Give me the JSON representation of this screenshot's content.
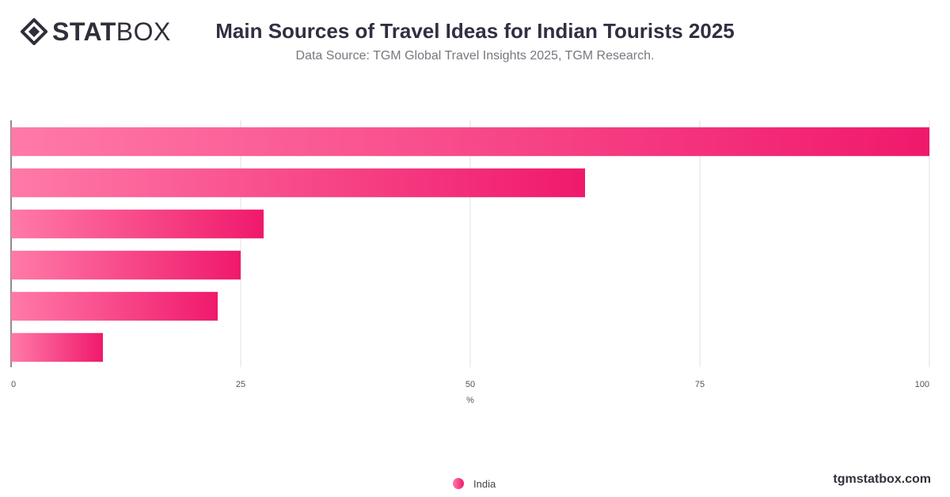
{
  "brand": {
    "logo_bold": "STAT",
    "logo_light": "BOX",
    "footer": "tgmstatbox.com"
  },
  "header": {
    "title": "Main Sources of Travel Ideas for Indian Tourists 2025",
    "subtitle": "Data Source: TGM Global Travel Insights 2025, TGM Research."
  },
  "legend": {
    "items": [
      {
        "label": "India",
        "color": "#f0196c"
      }
    ]
  },
  "chart_data": {
    "type": "bar",
    "orientation": "horizontal",
    "categories": [
      "",
      "",
      "",
      "",
      "",
      ""
    ],
    "series": [
      {
        "name": "India",
        "values": [
          100,
          62.5,
          27.5,
          25,
          22.5,
          10
        ]
      }
    ],
    "xlabel": "%",
    "xlim": [
      0,
      100
    ],
    "xticks": [
      0,
      25,
      50,
      75,
      100
    ],
    "grid": true,
    "legend_position": "bottom",
    "colors": {
      "bar_start": "#ff7aa8",
      "bar_end": "#f0196c",
      "grid": "#e2e2e2",
      "axis": "#444444"
    }
  }
}
